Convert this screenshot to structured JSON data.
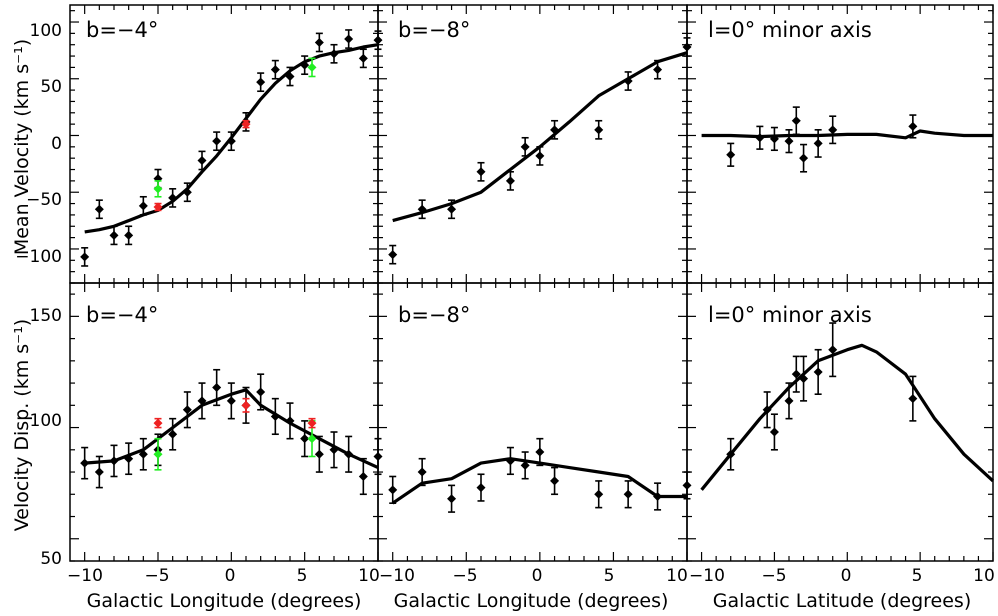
{
  "figure": {
    "y_labels": {
      "top": "Mean Velocity (km s⁻¹)",
      "bottom": "Velocity Disp. (km s⁻¹)"
    },
    "x_labels": [
      "Galactic Longitude (degrees)",
      "Galactic Longitude (degrees)",
      "Galactic Latitude (degrees)"
    ],
    "panel_titles": [
      "b=−4°",
      "b=−8°",
      "l=0° minor axis",
      "b=−4°",
      "b=−8°",
      "l=0° minor axis"
    ],
    "x_tick_labels": [
      "−10",
      "−5",
      "0",
      "5",
      "10"
    ],
    "y_tick_labels_top": [
      "−100",
      "−50",
      "0",
      "50",
      "100"
    ],
    "y_tick_labels_bottom": [
      "50",
      "100",
      "150"
    ],
    "colors": {
      "data": "#000000",
      "model": "#000000",
      "green": "#22ee22",
      "red": "#ee2222"
    }
  },
  "chart_data": [
    {
      "type": "scatter",
      "title": "b=−4°",
      "xlabel": "",
      "ylabel": "Mean Velocity (km s⁻¹)",
      "xlim": [
        -11,
        10
      ],
      "ylim": [
        -130,
        115
      ],
      "series": [
        {
          "kind": "points",
          "color": "black",
          "x": [
            -10,
            -9,
            -8,
            -7,
            -6,
            -5,
            -4,
            -3,
            -2,
            -1,
            0,
            1,
            2,
            3,
            4,
            5,
            6,
            7,
            8,
            9,
            10
          ],
          "y": [
            -107,
            -65,
            -88,
            -88,
            -62,
            -38,
            -55,
            -50,
            -22,
            -5,
            -5,
            12,
            47,
            58,
            52,
            62,
            82,
            72,
            85,
            68,
            84
          ],
          "err": [
            8,
            8,
            8,
            8,
            8,
            8,
            8,
            8,
            8,
            8,
            8,
            8,
            8,
            8,
            8,
            8,
            8,
            8,
            8,
            8,
            8
          ]
        },
        {
          "kind": "points",
          "color": "green",
          "x": [
            -5,
            5.5
          ],
          "y": [
            -47,
            60
          ],
          "err": [
            7,
            8
          ]
        },
        {
          "kind": "points",
          "color": "red",
          "x": [
            -5,
            1
          ],
          "y": [
            -63,
            10
          ],
          "err": [
            3,
            3
          ]
        },
        {
          "kind": "model",
          "x": [
            -10,
            -9,
            -8,
            -7,
            -6,
            -5,
            -4,
            -3,
            -2,
            -1,
            0,
            1,
            2,
            3,
            4,
            5,
            6,
            7,
            8,
            9,
            10
          ],
          "y": [
            -85,
            -83,
            -80,
            -75,
            -70,
            -66,
            -58,
            -47,
            -32,
            -18,
            -2,
            15,
            32,
            46,
            57,
            65,
            70,
            73,
            75,
            78,
            80
          ]
        }
      ]
    },
    {
      "type": "scatter",
      "title": "b=−8°",
      "xlabel": "",
      "ylabel": "",
      "xlim": [
        -11,
        10
      ],
      "ylim": [
        -130,
        115
      ],
      "series": [
        {
          "kind": "points",
          "color": "black",
          "x": [
            -10,
            -8,
            -6,
            -4,
            -2,
            -1,
            0,
            1,
            4,
            6,
            8,
            10
          ],
          "y": [
            -105,
            -65,
            -65,
            -32,
            -40,
            -10,
            -18,
            5,
            5,
            48,
            58,
            78
          ],
          "err": [
            8,
            8,
            8,
            8,
            8,
            8,
            8,
            8,
            8,
            8,
            8,
            8
          ]
        },
        {
          "kind": "model",
          "x": [
            -10,
            -8,
            -6,
            -4,
            -2,
            0,
            2,
            4,
            6,
            8,
            10
          ],
          "y": [
            -75,
            -68,
            -60,
            -50,
            -30,
            -10,
            12,
            35,
            50,
            65,
            73
          ]
        }
      ]
    },
    {
      "type": "scatter",
      "title": "l=0° minor axis",
      "xlabel": "",
      "ylabel": "",
      "xlim": [
        -11,
        10
      ],
      "ylim": [
        -130,
        115
      ],
      "series": [
        {
          "kind": "points",
          "color": "black",
          "x": [
            -8,
            -6,
            -5,
            -4,
            -3.5,
            -3,
            -2,
            -1,
            4.5
          ],
          "y": [
            -17,
            -2,
            -3,
            -5,
            13,
            -20,
            -7,
            5,
            8
          ],
          "err": [
            10,
            10,
            10,
            10,
            12,
            12,
            12,
            12,
            10
          ]
        },
        {
          "kind": "model",
          "x": [
            -10,
            -8,
            -6,
            -4,
            -2,
            0,
            2,
            4,
            5,
            6,
            8,
            10
          ],
          "y": [
            0,
            0,
            -1,
            0,
            0,
            1,
            1,
            -2,
            4,
            2,
            0,
            0
          ]
        }
      ]
    },
    {
      "type": "scatter",
      "title": "b=−4°",
      "xlabel": "Galactic Longitude (degrees)",
      "ylabel": "Velocity Disp. (km s⁻¹)",
      "xlim": [
        -11,
        10
      ],
      "ylim": [
        40,
        165
      ],
      "series": [
        {
          "kind": "points",
          "color": "black",
          "x": [
            -10,
            -9,
            -8,
            -7,
            -6,
            -5,
            -4,
            -3,
            -2,
            -1,
            0,
            1,
            2,
            3,
            4,
            5,
            6,
            7,
            8,
            9,
            10
          ],
          "y": [
            84,
            80,
            85,
            86,
            88,
            90,
            97,
            108,
            112,
            118,
            112,
            110,
            116,
            105,
            103,
            95,
            88,
            90,
            88,
            78,
            87
          ],
          "err": [
            7,
            7,
            7,
            7,
            7,
            7,
            7,
            8,
            8,
            8,
            8,
            8,
            8,
            8,
            8,
            8,
            8,
            8,
            8,
            8,
            8
          ]
        },
        {
          "kind": "points",
          "color": "green",
          "x": [
            -5,
            5.5
          ],
          "y": [
            88,
            95
          ],
          "err": [
            7,
            8
          ]
        },
        {
          "kind": "points",
          "color": "red",
          "x": [
            -5,
            1,
            5.5
          ],
          "y": [
            102,
            110,
            102
          ],
          "err": [
            2,
            3,
            2
          ]
        },
        {
          "kind": "model",
          "x": [
            -10,
            -8,
            -6,
            -4,
            -2,
            0,
            1,
            2,
            4,
            6,
            8,
            10
          ],
          "y": [
            84,
            85,
            90,
            100,
            110,
            115,
            117,
            110,
            102,
            95,
            88,
            82
          ]
        }
      ]
    },
    {
      "type": "scatter",
      "title": "b=−8°",
      "xlabel": "Galactic Longitude (degrees)",
      "ylabel": "",
      "xlim": [
        -11,
        10
      ],
      "ylim": [
        40,
        165
      ],
      "series": [
        {
          "kind": "points",
          "color": "black",
          "x": [
            -10,
            -8,
            -6,
            -4,
            -2,
            -1,
            0,
            1,
            4,
            6,
            8,
            10
          ],
          "y": [
            72,
            80,
            68,
            73,
            85,
            83,
            89,
            76,
            70,
            70,
            69,
            74
          ],
          "err": [
            6,
            6,
            6,
            6,
            6,
            6,
            6,
            6,
            6,
            6,
            6,
            6
          ]
        },
        {
          "kind": "model",
          "x": [
            -10,
            -8,
            -6,
            -4,
            -2,
            0,
            2,
            4,
            6,
            8,
            10
          ],
          "y": [
            66,
            75,
            77,
            84,
            86,
            84,
            82,
            80,
            78,
            69,
            69
          ]
        }
      ]
    },
    {
      "type": "scatter",
      "title": "l=0° minor axis",
      "xlabel": "Galactic Latitude (degrees)",
      "ylabel": "",
      "xlim": [
        -11,
        10
      ],
      "ylim": [
        40,
        165
      ],
      "series": [
        {
          "kind": "points",
          "color": "black",
          "x": [
            -8,
            -5.5,
            -5,
            -4,
            -3.5,
            -3,
            -2,
            -1,
            4.5
          ],
          "y": [
            88,
            108,
            98,
            112,
            124,
            122,
            125,
            135,
            113
          ],
          "err": [
            7,
            8,
            8,
            8,
            8,
            10,
            10,
            12,
            10
          ]
        },
        {
          "kind": "model",
          "x": [
            -10,
            -8,
            -6,
            -4,
            -2,
            0,
            1,
            2,
            4,
            6,
            8,
            10
          ],
          "y": [
            72,
            88,
            104,
            118,
            130,
            135,
            137,
            134,
            124,
            104,
            88,
            76
          ]
        }
      ]
    }
  ]
}
